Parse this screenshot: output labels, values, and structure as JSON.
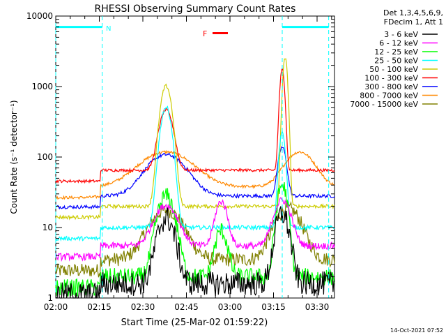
{
  "chart_data": {
    "type": "line",
    "title": "RHESSI Observing Summary Count Rates",
    "xlabel": "Start Time (25-Mar-02 01:59:22)",
    "ylabel": "Count Rate (s⁻¹ detector⁻¹)",
    "y_scale": "log",
    "xlim_minutes": [
      0,
      96
    ],
    "ylim": [
      1,
      10000
    ],
    "x_ticks": [
      "02:00",
      "02:15",
      "02:30",
      "02:45",
      "03:00",
      "03:15",
      "03:30"
    ],
    "x_tick_minutes": [
      0,
      15,
      30,
      45,
      60,
      75,
      90
    ],
    "y_ticks": [
      "1",
      "10",
      "100",
      "1000",
      "10000"
    ],
    "y_tick_values": [
      1,
      10,
      100,
      1000,
      10000
    ],
    "legend_header": [
      "Det 1,3,4,5,6,9,",
      "FDecim 1, Att 1"
    ],
    "series": [
      {
        "name": "3 - 6 keV",
        "color": "#000000",
        "base": 1.6,
        "peaks": [
          [
            38,
            12,
            2.5
          ],
          [
            78,
            14,
            2.0
          ]
        ],
        "noise": 0.35
      },
      {
        "name": "6 - 12 keV",
        "color": "#ff00ff",
        "base": 5.5,
        "peaks": [
          [
            38,
            15,
            3.5
          ],
          [
            57,
            18,
            1.8
          ],
          [
            78,
            19,
            2.5
          ]
        ],
        "noise": 0.1
      },
      {
        "name": "12 - 25 keV",
        "color": "#00ff00",
        "base": 2.0,
        "peaks": [
          [
            38,
            26,
            2.5
          ],
          [
            57,
            7,
            1.8
          ],
          [
            78,
            38,
            1.5
          ]
        ],
        "noise": 0.25
      },
      {
        "name": "25 - 50 keV",
        "color": "#00ffff",
        "base": 10,
        "peaks": [
          [
            38,
            500,
            1.6
          ],
          [
            78,
            220,
            0.9
          ]
        ],
        "noise": 0.06
      },
      {
        "name": "50 - 100 keV",
        "color": "#cccc00",
        "base": 20,
        "peaks": [
          [
            38,
            1000,
            1.6
          ],
          [
            79,
            2500,
            0.7
          ]
        ],
        "noise": 0.05
      },
      {
        "name": "100 - 300 keV",
        "color": "#ff0000",
        "base": 65,
        "peaks": [
          [
            38,
            400,
            2.0
          ],
          [
            78,
            1700,
            0.7
          ]
        ],
        "noise": 0.04
      },
      {
        "name": "300 - 800 keV",
        "color": "#0000ff",
        "base": 28,
        "peaks": [
          [
            38,
            80,
            6.0
          ],
          [
            78,
            110,
            1.2
          ]
        ],
        "noise": 0.05
      },
      {
        "name": "800 - 7000 keV",
        "color": "#ff8800",
        "base": 38,
        "peaks": [
          [
            38,
            80,
            8.0
          ],
          [
            84,
            80,
            4.5
          ]
        ],
        "noise": 0.04
      },
      {
        "name": "7000 - 15000 keV",
        "color": "#808000",
        "base": 3.5,
        "peaks": [
          [
            38,
            14,
            5.0
          ],
          [
            80,
            15,
            4.0
          ]
        ],
        "noise": 0.2
      }
    ],
    "annotations": {
      "flare_flag": {
        "label": "F",
        "color": "#ff0000"
      },
      "night_flag": {
        "label": "N",
        "color": "#00ffff",
        "intervals_minutes": [
          [
            0,
            16
          ],
          [
            78,
            94
          ]
        ],
        "level": 7000
      }
    }
  },
  "footer": {
    "timestamp": "14-Oct-2021 07:52"
  }
}
